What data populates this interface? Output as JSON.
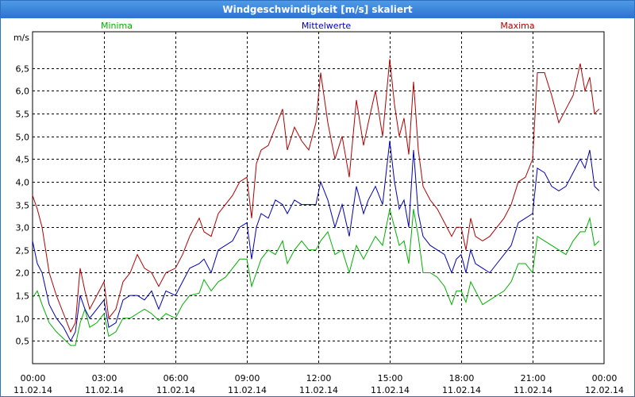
{
  "window": {
    "title": "Windgeschwindigkeit [m/s] skaliert"
  },
  "chart_data": {
    "type": "line",
    "ylabel": "m/s",
    "ylim": [
      0,
      7.3
    ],
    "y_ticks": [
      "0,5",
      "1,0",
      "1,5",
      "2,0",
      "2,5",
      "3,0",
      "3,5",
      "4,0",
      "4,5",
      "5,0",
      "5,5",
      "6,0",
      "6,5"
    ],
    "y_tick_values": [
      0.5,
      1.0,
      1.5,
      2.0,
      2.5,
      3.0,
      3.5,
      4.0,
      4.5,
      5.0,
      5.5,
      6.0,
      6.5
    ],
    "x_range_hours": [
      0,
      24
    ],
    "x_ticks": [
      {
        "hour": 0,
        "time": "00:00",
        "date": "11.02.14"
      },
      {
        "hour": 3,
        "time": "03:00",
        "date": "11.02.14"
      },
      {
        "hour": 6,
        "time": "06:00",
        "date": "11.02.14"
      },
      {
        "hour": 9,
        "time": "09:00",
        "date": "11.02.14"
      },
      {
        "hour": 12,
        "time": "12:00",
        "date": "11.02.14"
      },
      {
        "hour": 15,
        "time": "15:00",
        "date": "11.02.14"
      },
      {
        "hour": 18,
        "time": "18:00",
        "date": "11.02.14"
      },
      {
        "hour": 21,
        "time": "21:00",
        "date": "11.02.14"
      },
      {
        "hour": 24,
        "time": "00:00",
        "date": "12.02.14"
      }
    ],
    "grid": true,
    "legend_position": "top",
    "series": [
      {
        "name": "Minima",
        "color": "#00b000",
        "points": [
          [
            0,
            1.45
          ],
          [
            0.2,
            1.6
          ],
          [
            0.4,
            1.3
          ],
          [
            0.7,
            0.9
          ],
          [
            1.0,
            0.7
          ],
          [
            1.3,
            0.55
          ],
          [
            1.6,
            0.4
          ],
          [
            1.8,
            0.4
          ],
          [
            2.0,
            0.9
          ],
          [
            2.2,
            1.2
          ],
          [
            2.4,
            0.8
          ],
          [
            2.7,
            0.9
          ],
          [
            3.0,
            1.1
          ],
          [
            3.2,
            0.6
          ],
          [
            3.5,
            0.7
          ],
          [
            3.8,
            1.0
          ],
          [
            4.1,
            1.0
          ],
          [
            4.4,
            1.1
          ],
          [
            4.7,
            1.2
          ],
          [
            5.0,
            1.1
          ],
          [
            5.3,
            0.95
          ],
          [
            5.6,
            1.1
          ],
          [
            6.0,
            1.0
          ],
          [
            6.3,
            1.3
          ],
          [
            6.6,
            1.5
          ],
          [
            7.0,
            1.55
          ],
          [
            7.2,
            1.85
          ],
          [
            7.5,
            1.6
          ],
          [
            7.8,
            1.8
          ],
          [
            8.1,
            1.9
          ],
          [
            8.4,
            2.1
          ],
          [
            8.7,
            2.3
          ],
          [
            9.0,
            2.3
          ],
          [
            9.2,
            1.7
          ],
          [
            9.4,
            2.0
          ],
          [
            9.6,
            2.3
          ],
          [
            9.9,
            2.5
          ],
          [
            10.2,
            2.4
          ],
          [
            10.5,
            2.7
          ],
          [
            10.7,
            2.2
          ],
          [
            11.0,
            2.5
          ],
          [
            11.3,
            2.7
          ],
          [
            11.6,
            2.5
          ],
          [
            11.9,
            2.5
          ],
          [
            12.1,
            2.7
          ],
          [
            12.4,
            2.9
          ],
          [
            12.7,
            2.4
          ],
          [
            13.0,
            2.5
          ],
          [
            13.3,
            2.0
          ],
          [
            13.6,
            2.6
          ],
          [
            13.9,
            2.3
          ],
          [
            14.1,
            2.5
          ],
          [
            14.4,
            2.8
          ],
          [
            14.7,
            2.6
          ],
          [
            15.0,
            3.4
          ],
          [
            15.2,
            3.0
          ],
          [
            15.4,
            2.6
          ],
          [
            15.6,
            2.7
          ],
          [
            15.8,
            2.2
          ],
          [
            16.0,
            3.4
          ],
          [
            16.2,
            2.8
          ],
          [
            16.4,
            2.0
          ],
          [
            16.7,
            2.0
          ],
          [
            17.0,
            1.9
          ],
          [
            17.3,
            1.7
          ],
          [
            17.6,
            1.3
          ],
          [
            17.8,
            1.6
          ],
          [
            18.0,
            1.6
          ],
          [
            18.2,
            1.35
          ],
          [
            18.4,
            1.8
          ],
          [
            18.6,
            1.6
          ],
          [
            18.9,
            1.3
          ],
          [
            19.2,
            1.4
          ],
          [
            19.5,
            1.5
          ],
          [
            19.8,
            1.6
          ],
          [
            20.1,
            1.8
          ],
          [
            20.4,
            2.2
          ],
          [
            20.7,
            2.2
          ],
          [
            21.0,
            2.0
          ],
          [
            21.2,
            2.8
          ],
          [
            21.5,
            2.7
          ],
          [
            21.8,
            2.6
          ],
          [
            22.1,
            2.5
          ],
          [
            22.4,
            2.4
          ],
          [
            22.7,
            2.7
          ],
          [
            23.0,
            2.9
          ],
          [
            23.2,
            2.9
          ],
          [
            23.4,
            3.2
          ],
          [
            23.6,
            2.6
          ],
          [
            23.8,
            2.7
          ]
        ]
      },
      {
        "name": "Mittelwerte",
        "color": "#0000b0",
        "points": [
          [
            0,
            2.7
          ],
          [
            0.2,
            2.2
          ],
          [
            0.4,
            2.0
          ],
          [
            0.7,
            1.3
          ],
          [
            1.0,
            1.0
          ],
          [
            1.3,
            0.8
          ],
          [
            1.6,
            0.5
          ],
          [
            1.8,
            0.7
          ],
          [
            2.0,
            1.5
          ],
          [
            2.2,
            1.2
          ],
          [
            2.4,
            1.0
          ],
          [
            2.7,
            1.2
          ],
          [
            3.0,
            1.4
          ],
          [
            3.2,
            0.8
          ],
          [
            3.5,
            0.9
          ],
          [
            3.8,
            1.4
          ],
          [
            4.1,
            1.5
          ],
          [
            4.4,
            1.5
          ],
          [
            4.7,
            1.4
          ],
          [
            5.0,
            1.6
          ],
          [
            5.3,
            1.2
          ],
          [
            5.6,
            1.6
          ],
          [
            6.0,
            1.5
          ],
          [
            6.3,
            1.8
          ],
          [
            6.6,
            2.1
          ],
          [
            7.0,
            2.2
          ],
          [
            7.2,
            2.3
          ],
          [
            7.5,
            2.0
          ],
          [
            7.8,
            2.5
          ],
          [
            8.1,
            2.6
          ],
          [
            8.4,
            2.7
          ],
          [
            8.7,
            3.0
          ],
          [
            9.0,
            3.1
          ],
          [
            9.2,
            2.3
          ],
          [
            9.4,
            3.0
          ],
          [
            9.6,
            3.3
          ],
          [
            9.9,
            3.2
          ],
          [
            10.2,
            3.6
          ],
          [
            10.5,
            3.5
          ],
          [
            10.7,
            3.3
          ],
          [
            11.0,
            3.6
          ],
          [
            11.3,
            3.5
          ],
          [
            11.6,
            3.5
          ],
          [
            11.9,
            3.5
          ],
          [
            12.1,
            4.0
          ],
          [
            12.4,
            3.6
          ],
          [
            12.7,
            3.0
          ],
          [
            13.0,
            3.5
          ],
          [
            13.3,
            2.8
          ],
          [
            13.6,
            3.9
          ],
          [
            13.9,
            3.3
          ],
          [
            14.1,
            3.6
          ],
          [
            14.4,
            3.9
          ],
          [
            14.7,
            3.5
          ],
          [
            15.0,
            4.9
          ],
          [
            15.2,
            4.0
          ],
          [
            15.4,
            3.4
          ],
          [
            15.6,
            3.6
          ],
          [
            15.8,
            3.0
          ],
          [
            16.0,
            4.7
          ],
          [
            16.2,
            3.3
          ],
          [
            16.4,
            2.8
          ],
          [
            16.7,
            2.6
          ],
          [
            17.0,
            2.5
          ],
          [
            17.3,
            2.4
          ],
          [
            17.6,
            2.0
          ],
          [
            17.8,
            2.3
          ],
          [
            18.0,
            2.4
          ],
          [
            18.2,
            2.0
          ],
          [
            18.4,
            2.5
          ],
          [
            18.6,
            2.2
          ],
          [
            18.9,
            2.1
          ],
          [
            19.2,
            2.0
          ],
          [
            19.5,
            2.2
          ],
          [
            19.8,
            2.4
          ],
          [
            20.1,
            2.6
          ],
          [
            20.4,
            3.1
          ],
          [
            20.7,
            3.2
          ],
          [
            21.0,
            3.3
          ],
          [
            21.2,
            4.3
          ],
          [
            21.5,
            4.2
          ],
          [
            21.8,
            3.9
          ],
          [
            22.1,
            3.8
          ],
          [
            22.4,
            3.9
          ],
          [
            22.7,
            4.2
          ],
          [
            23.0,
            4.5
          ],
          [
            23.2,
            4.3
          ],
          [
            23.4,
            4.7
          ],
          [
            23.6,
            3.9
          ],
          [
            23.8,
            3.8
          ]
        ]
      },
      {
        "name": "Maxima",
        "color": "#b00000",
        "points": [
          [
            0,
            3.7
          ],
          [
            0.2,
            3.4
          ],
          [
            0.4,
            3.0
          ],
          [
            0.7,
            2.0
          ],
          [
            1.0,
            1.5
          ],
          [
            1.3,
            1.1
          ],
          [
            1.6,
            0.7
          ],
          [
            1.8,
            0.9
          ],
          [
            2.0,
            2.1
          ],
          [
            2.2,
            1.6
          ],
          [
            2.4,
            1.2
          ],
          [
            2.7,
            1.5
          ],
          [
            3.0,
            1.8
          ],
          [
            3.2,
            1.0
          ],
          [
            3.5,
            1.2
          ],
          [
            3.8,
            1.8
          ],
          [
            4.1,
            2.0
          ],
          [
            4.4,
            2.4
          ],
          [
            4.7,
            2.1
          ],
          [
            5.0,
            2.0
          ],
          [
            5.3,
            1.7
          ],
          [
            5.6,
            2.0
          ],
          [
            6.0,
            2.1
          ],
          [
            6.3,
            2.4
          ],
          [
            6.6,
            2.8
          ],
          [
            7.0,
            3.2
          ],
          [
            7.2,
            2.9
          ],
          [
            7.5,
            2.8
          ],
          [
            7.8,
            3.3
          ],
          [
            8.1,
            3.5
          ],
          [
            8.4,
            3.7
          ],
          [
            8.7,
            4.0
          ],
          [
            9.0,
            4.1
          ],
          [
            9.2,
            3.2
          ],
          [
            9.4,
            4.4
          ],
          [
            9.6,
            4.7
          ],
          [
            9.9,
            4.8
          ],
          [
            10.2,
            5.2
          ],
          [
            10.5,
            5.6
          ],
          [
            10.7,
            4.7
          ],
          [
            11.0,
            5.2
          ],
          [
            11.3,
            4.9
          ],
          [
            11.6,
            4.7
          ],
          [
            11.9,
            5.3
          ],
          [
            12.1,
            6.4
          ],
          [
            12.4,
            5.3
          ],
          [
            12.7,
            4.5
          ],
          [
            13.0,
            5.0
          ],
          [
            13.3,
            4.1
          ],
          [
            13.6,
            5.8
          ],
          [
            13.9,
            4.8
          ],
          [
            14.1,
            5.3
          ],
          [
            14.4,
            6.0
          ],
          [
            14.7,
            5.0
          ],
          [
            15.0,
            6.7
          ],
          [
            15.2,
            5.7
          ],
          [
            15.4,
            5.0
          ],
          [
            15.6,
            5.4
          ],
          [
            15.8,
            4.6
          ],
          [
            16.0,
            6.2
          ],
          [
            16.2,
            4.7
          ],
          [
            16.4,
            3.9
          ],
          [
            16.7,
            3.6
          ],
          [
            17.0,
            3.4
          ],
          [
            17.3,
            3.1
          ],
          [
            17.6,
            2.8
          ],
          [
            17.8,
            3.0
          ],
          [
            18.0,
            3.0
          ],
          [
            18.2,
            2.5
          ],
          [
            18.4,
            3.2
          ],
          [
            18.6,
            2.8
          ],
          [
            18.9,
            2.7
          ],
          [
            19.2,
            2.8
          ],
          [
            19.5,
            3.0
          ],
          [
            19.8,
            3.2
          ],
          [
            20.1,
            3.5
          ],
          [
            20.4,
            4.0
          ],
          [
            20.7,
            4.1
          ],
          [
            21.0,
            4.5
          ],
          [
            21.2,
            6.4
          ],
          [
            21.5,
            6.4
          ],
          [
            21.8,
            5.9
          ],
          [
            22.1,
            5.3
          ],
          [
            22.4,
            5.6
          ],
          [
            22.7,
            5.9
          ],
          [
            23.0,
            6.6
          ],
          [
            23.2,
            6.0
          ],
          [
            23.4,
            6.3
          ],
          [
            23.6,
            5.5
          ],
          [
            23.8,
            5.6
          ]
        ]
      }
    ]
  }
}
